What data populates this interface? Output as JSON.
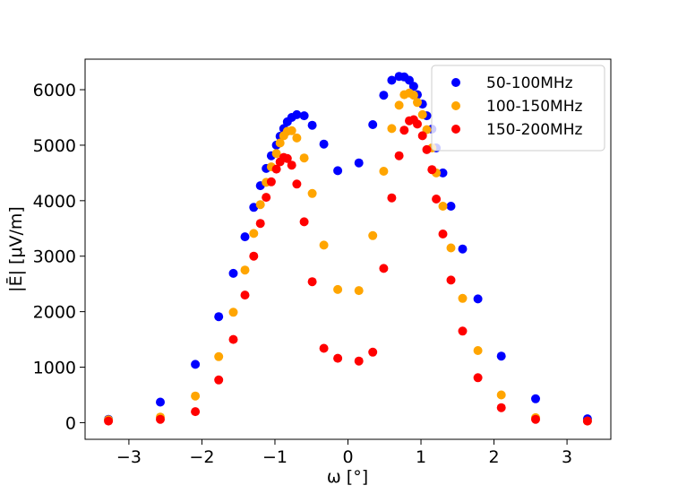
{
  "chart_data": {
    "type": "scatter",
    "title": "",
    "xlabel": "ω [°]",
    "ylabel": "|Ē| [μV/m]",
    "xlim": [
      -3.6,
      3.6
    ],
    "ylim": [
      -300,
      6550
    ],
    "xticks": [
      -3,
      -2,
      -1,
      0,
      1,
      2,
      3
    ],
    "yticks": [
      0,
      1000,
      2000,
      3000,
      4000,
      5000,
      6000
    ],
    "xtick_labels": [
      "−3",
      "−2",
      "−1",
      "0",
      "1",
      "2",
      "3"
    ],
    "ytick_labels": [
      "0",
      "1000",
      "2000",
      "3000",
      "4000",
      "5000",
      "6000"
    ],
    "grid": false,
    "legend_position": "upper right",
    "series": [
      {
        "name": "50-100MHz",
        "color": "#0000ff",
        "points": [
          [
            -3.28,
            60
          ],
          [
            -2.57,
            370
          ],
          [
            -2.09,
            1050
          ],
          [
            -1.77,
            1910
          ],
          [
            -1.57,
            2690
          ],
          [
            -1.41,
            3350
          ],
          [
            -1.29,
            3880
          ],
          [
            -1.2,
            4270
          ],
          [
            -1.12,
            4580
          ],
          [
            -1.05,
            4810
          ],
          [
            -0.98,
            5000
          ],
          [
            -0.93,
            5160
          ],
          [
            -0.88,
            5300
          ],
          [
            -0.83,
            5420
          ],
          [
            -0.77,
            5500
          ],
          [
            -0.7,
            5550
          ],
          [
            -0.6,
            5530
          ],
          [
            -0.49,
            5360
          ],
          [
            -0.33,
            5020
          ],
          [
            -0.14,
            4540
          ],
          [
            0.15,
            4680
          ],
          [
            0.34,
            5370
          ],
          [
            0.49,
            5900
          ],
          [
            0.6,
            6170
          ],
          [
            0.7,
            6240
          ],
          [
            0.77,
            6230
          ],
          [
            0.84,
            6170
          ],
          [
            0.9,
            6060
          ],
          [
            0.95,
            5910
          ],
          [
            1.02,
            5740
          ],
          [
            1.08,
            5530
          ],
          [
            1.15,
            5290
          ],
          [
            1.21,
            4950
          ],
          [
            1.3,
            4500
          ],
          [
            1.41,
            3900
          ],
          [
            1.57,
            3130
          ],
          [
            1.78,
            2230
          ],
          [
            2.1,
            1200
          ],
          [
            2.57,
            430
          ],
          [
            3.28,
            70
          ]
        ]
      },
      {
        "name": "100-150MHz",
        "color": "#ffa500",
        "points": [
          [
            -3.28,
            50
          ],
          [
            -2.57,
            100
          ],
          [
            -2.09,
            480
          ],
          [
            -1.77,
            1190
          ],
          [
            -1.57,
            1990
          ],
          [
            -1.41,
            2750
          ],
          [
            -1.29,
            3410
          ],
          [
            -1.2,
            3930
          ],
          [
            -1.12,
            4330
          ],
          [
            -1.05,
            4610
          ],
          [
            -0.98,
            4850
          ],
          [
            -0.93,
            5040
          ],
          [
            -0.88,
            5170
          ],
          [
            -0.83,
            5250
          ],
          [
            -0.77,
            5260
          ],
          [
            -0.7,
            5130
          ],
          [
            -0.6,
            4770
          ],
          [
            -0.49,
            4130
          ],
          [
            -0.33,
            3200
          ],
          [
            -0.14,
            2400
          ],
          [
            0.15,
            2380
          ],
          [
            0.34,
            3370
          ],
          [
            0.49,
            4530
          ],
          [
            0.6,
            5300
          ],
          [
            0.7,
            5720
          ],
          [
            0.77,
            5910
          ],
          [
            0.84,
            5940
          ],
          [
            0.9,
            5900
          ],
          [
            0.95,
            5770
          ],
          [
            1.02,
            5550
          ],
          [
            1.08,
            5280
          ],
          [
            1.15,
            4950
          ],
          [
            1.21,
            4500
          ],
          [
            1.3,
            3900
          ],
          [
            1.41,
            3150
          ],
          [
            1.57,
            2240
          ],
          [
            1.78,
            1300
          ],
          [
            2.1,
            500
          ],
          [
            2.57,
            90
          ],
          [
            3.28,
            30
          ]
        ]
      },
      {
        "name": "150-200MHz",
        "color": "#ff0000",
        "points": [
          [
            -3.28,
            30
          ],
          [
            -2.57,
            60
          ],
          [
            -2.09,
            200
          ],
          [
            -1.77,
            770
          ],
          [
            -1.57,
            1500
          ],
          [
            -1.41,
            2300
          ],
          [
            -1.29,
            3000
          ],
          [
            -1.2,
            3590
          ],
          [
            -1.12,
            4060
          ],
          [
            -1.05,
            4340
          ],
          [
            -0.98,
            4570
          ],
          [
            -0.93,
            4700
          ],
          [
            -0.88,
            4780
          ],
          [
            -0.83,
            4760
          ],
          [
            -0.77,
            4640
          ],
          [
            -0.7,
            4300
          ],
          [
            -0.6,
            3620
          ],
          [
            -0.49,
            2540
          ],
          [
            -0.33,
            1340
          ],
          [
            -0.14,
            1160
          ],
          [
            0.15,
            1110
          ],
          [
            0.34,
            1270
          ],
          [
            0.49,
            2780
          ],
          [
            0.6,
            4050
          ],
          [
            0.7,
            4810
          ],
          [
            0.77,
            5270
          ],
          [
            0.84,
            5440
          ],
          [
            0.9,
            5460
          ],
          [
            0.95,
            5380
          ],
          [
            1.02,
            5170
          ],
          [
            1.08,
            4920
          ],
          [
            1.15,
            4560
          ],
          [
            1.21,
            4030
          ],
          [
            1.3,
            3400
          ],
          [
            1.41,
            2570
          ],
          [
            1.57,
            1650
          ],
          [
            1.78,
            810
          ],
          [
            2.1,
            270
          ],
          [
            2.57,
            60
          ],
          [
            3.28,
            30
          ]
        ]
      }
    ]
  }
}
